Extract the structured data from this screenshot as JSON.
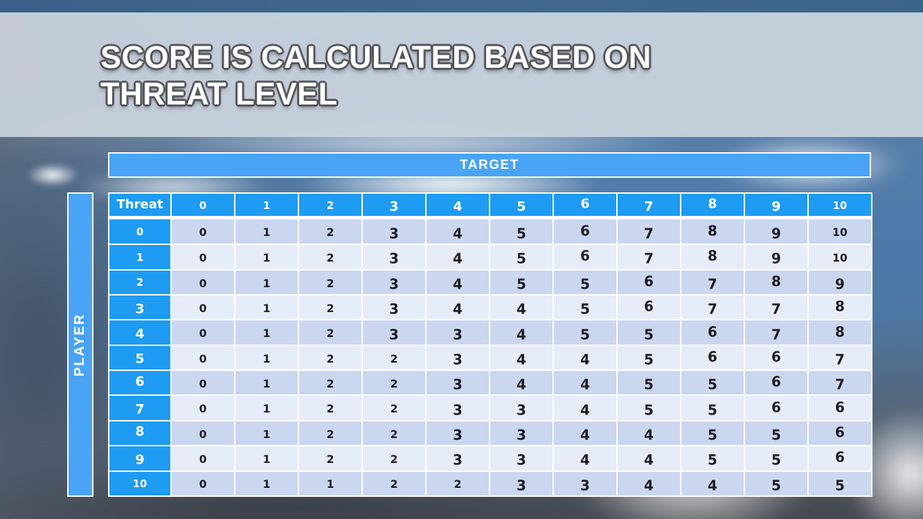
{
  "title": {
    "line1": "SCORE IS CALCULATED BASED ON",
    "line2": "THREAT LEVEL"
  },
  "table": {
    "target_label": "TARGET",
    "player_label": "PLAYER",
    "corner_label": "Threat",
    "column_headers": [
      "0",
      "1",
      "2",
      "3",
      "4",
      "5",
      "6",
      "7",
      "8",
      "9",
      "10"
    ],
    "row_headers": [
      "0",
      "1",
      "2",
      "3",
      "4",
      "5",
      "6",
      "7",
      "8",
      "9",
      "10"
    ],
    "rows": [
      [
        "0",
        "1",
        "2",
        "3",
        "4",
        "5",
        "6",
        "7",
        "8",
        "9",
        "10"
      ],
      [
        "0",
        "1",
        "2",
        "3",
        "4",
        "5",
        "6",
        "7",
        "8",
        "9",
        "10"
      ],
      [
        "0",
        "1",
        "2",
        "3",
        "4",
        "5",
        "5",
        "6",
        "7",
        "8",
        "9"
      ],
      [
        "0",
        "1",
        "2",
        "3",
        "4",
        "4",
        "5",
        "6",
        "7",
        "7",
        "8"
      ],
      [
        "0",
        "1",
        "2",
        "3",
        "3",
        "4",
        "5",
        "5",
        "6",
        "7",
        "8"
      ],
      [
        "0",
        "1",
        "2",
        "2",
        "3",
        "4",
        "4",
        "5",
        "6",
        "6",
        "7"
      ],
      [
        "0",
        "1",
        "2",
        "2",
        "3",
        "4",
        "4",
        "5",
        "5",
        "6",
        "7"
      ],
      [
        "0",
        "1",
        "2",
        "2",
        "3",
        "3",
        "4",
        "5",
        "5",
        "6",
        "6"
      ],
      [
        "0",
        "1",
        "2",
        "2",
        "3",
        "3",
        "4",
        "4",
        "5",
        "5",
        "6"
      ],
      [
        "0",
        "1",
        "2",
        "2",
        "3",
        "3",
        "4",
        "4",
        "5",
        "5",
        "6"
      ],
      [
        "0",
        "1",
        "1",
        "2",
        "2",
        "3",
        "3",
        "4",
        "4",
        "5",
        "5"
      ]
    ]
  },
  "colors": {
    "header_blue": "#1e9bf2",
    "axis_bar_blue": "#49a4f5",
    "row_dark": "#cbd7f0",
    "row_light": "#e7ecf9",
    "top_strip": "#3b648d",
    "title_band": "#cbd4dd",
    "cell_text": "#1d1d20"
  }
}
